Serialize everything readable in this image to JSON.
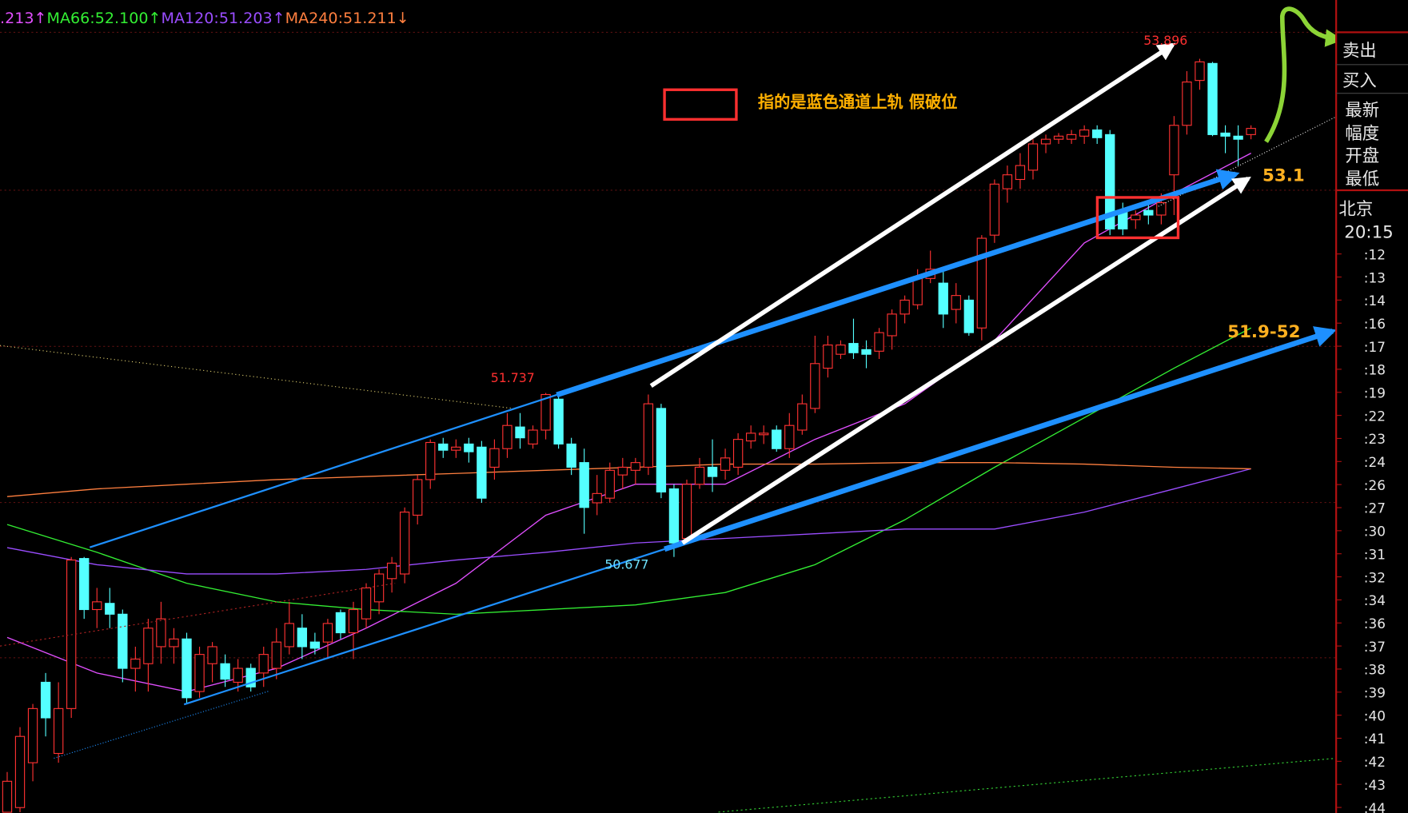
{
  "chart_data": {
    "type": "candlestick",
    "legend": [
      {
        "text": ".213↑",
        "color": "#e14fff"
      },
      {
        "text": "MA66:52.100↑",
        "color": "#33ee33"
      },
      {
        "text": "MA120:51.203↑",
        "color": "#9a4dff"
      },
      {
        "text": "MA240:51.211↓",
        "color": "#ff7f3f"
      }
    ],
    "ylim": [
      49.025,
      54.28
    ],
    "up_color": "#ff3232",
    "down_color": "#54ffff",
    "open": [
      49.03,
      49.06,
      49.35,
      49.87,
      49.41,
      49.7,
      50.67,
      50.34,
      50.38,
      50.31,
      49.96,
      49.99,
      50.1,
      50.1,
      50.15,
      49.81,
      49.99,
      49.99,
      49.87,
      49.96,
      49.93,
      49.96,
      50.1,
      50.22,
      50.13,
      50.13,
      50.32,
      50.19,
      50.28,
      50.39,
      50.54,
      50.57,
      50.95,
      51.18,
      51.41,
      51.37,
      51.41,
      51.39,
      51.26,
      51.38,
      51.52,
      51.41,
      51.5,
      51.7,
      51.41,
      51.29,
      51.03,
      51.06,
      51.21,
      51.24,
      51.26,
      51.64,
      51.12,
      50.8,
      51.15,
      51.26,
      51.24,
      51.26,
      51.43,
      51.47,
      51.5,
      51.38,
      51.5,
      51.64,
      51.9,
      51.99,
      52.06,
      52.02,
      52.01,
      52.11,
      52.25,
      52.31,
      52.48,
      52.45,
      52.28,
      52.34,
      52.16,
      52.76,
      53.06,
      53.12,
      53.18,
      53.35,
      53.38,
      53.38,
      53.4,
      53.44,
      53.41,
      52.92,
      52.86,
      52.92,
      52.89,
      53.15,
      53.47,
      53.76,
      53.87,
      53.42,
      53.4,
      53.41
    ],
    "close": [
      49.23,
      49.52,
      49.7,
      49.64,
      49.7,
      50.66,
      50.34,
      50.39,
      50.31,
      49.96,
      50.02,
      50.22,
      50.28,
      50.15,
      49.77,
      50.05,
      50.1,
      49.89,
      49.96,
      49.84,
      50.05,
      50.13,
      50.25,
      50.1,
      50.09,
      50.25,
      50.19,
      50.34,
      50.48,
      50.57,
      50.64,
      50.97,
      51.18,
      51.42,
      51.37,
      51.39,
      51.36,
      51.06,
      51.38,
      51.53,
      51.45,
      51.5,
      51.73,
      51.41,
      51.26,
      51.0,
      51.09,
      51.24,
      51.26,
      51.29,
      51.67,
      51.1,
      50.77,
      51.15,
      51.26,
      51.2,
      51.32,
      51.44,
      51.48,
      51.48,
      51.38,
      51.53,
      51.67,
      51.93,
      52.05,
      52.05,
      52.0,
      51.99,
      52.13,
      52.25,
      52.34,
      52.48,
      52.54,
      52.25,
      52.37,
      52.13,
      52.74,
      53.09,
      53.15,
      53.21,
      53.35,
      53.38,
      53.4,
      53.41,
      53.44,
      53.39,
      52.8,
      52.8,
      52.89,
      52.89,
      52.97,
      53.47,
      53.75,
      53.88,
      53.41,
      53.4,
      53.38,
      53.45
    ],
    "high": [
      49.29,
      49.58,
      49.73,
      49.93,
      49.87,
      50.68,
      50.68,
      50.48,
      50.48,
      50.34,
      50.1,
      50.28,
      50.39,
      50.22,
      50.19,
      50.1,
      50.13,
      50.05,
      50.02,
      49.99,
      50.1,
      50.22,
      50.39,
      50.31,
      50.19,
      50.28,
      50.34,
      50.39,
      50.51,
      50.6,
      50.68,
      51.0,
      51.21,
      51.44,
      51.45,
      51.44,
      51.45,
      51.43,
      51.44,
      51.61,
      51.61,
      51.53,
      51.74,
      51.73,
      51.45,
      51.38,
      51.21,
      51.29,
      51.32,
      51.32,
      51.73,
      51.67,
      51.15,
      51.18,
      51.32,
      51.44,
      51.38,
      51.48,
      51.53,
      51.53,
      51.53,
      51.61,
      51.73,
      52.11,
      52.11,
      52.08,
      52.22,
      52.08,
      52.16,
      52.28,
      52.37,
      52.54,
      52.66,
      52.54,
      52.45,
      52.37,
      52.76,
      53.12,
      53.21,
      53.29,
      53.38,
      53.41,
      53.42,
      53.44,
      53.47,
      53.47,
      53.44,
      52.97,
      52.92,
      52.97,
      53.03,
      53.53,
      53.82,
      53.9,
      53.88,
      53.47,
      53.47,
      53.47
    ],
    "low": [
      49.03,
      49.03,
      49.23,
      49.52,
      49.35,
      49.64,
      50.28,
      50.22,
      50.22,
      49.87,
      49.81,
      49.81,
      49.99,
      49.99,
      49.73,
      49.77,
      49.87,
      49.84,
      49.81,
      49.81,
      49.84,
      49.89,
      50.05,
      50.02,
      50.05,
      50.02,
      50.15,
      50.02,
      50.22,
      50.31,
      50.45,
      50.51,
      50.89,
      51.12,
      51.32,
      51.32,
      51.29,
      51.03,
      51.18,
      51.32,
      51.38,
      51.38,
      51.44,
      51.38,
      51.21,
      50.83,
      50.95,
      51.03,
      51.12,
      51.15,
      51.21,
      51.06,
      50.68,
      50.77,
      51.12,
      51.1,
      51.18,
      51.21,
      51.38,
      51.41,
      51.36,
      51.32,
      51.47,
      51.61,
      51.84,
      51.96,
      51.96,
      51.9,
      51.96,
      52.02,
      52.19,
      52.28,
      52.45,
      52.16,
      52.19,
      52.11,
      52.08,
      52.71,
      52.97,
      53.06,
      53.12,
      53.29,
      53.35,
      53.35,
      53.35,
      53.35,
      52.76,
      52.76,
      52.8,
      52.83,
      52.83,
      52.89,
      53.41,
      53.7,
      53.4,
      53.29,
      53.21,
      53.38
    ],
    "series": [
      {
        "color": "#e14fff",
        "x": [
          0,
          7,
          14,
          21,
          28,
          35,
          42,
          49,
          56,
          63,
          70,
          77,
          84,
          91,
          97
        ],
        "values": [
          50.16,
          49.93,
          49.81,
          49.96,
          50.22,
          50.51,
          50.95,
          51.15,
          51.15,
          51.44,
          51.67,
          52.08,
          52.71,
          53.03,
          53.29
        ]
      },
      {
        "color": "#33ee33",
        "x": [
          0,
          7,
          14,
          21,
          28,
          35,
          42,
          49,
          56,
          63,
          70,
          77,
          84,
          91,
          97
        ],
        "values": [
          50.89,
          50.71,
          50.51,
          50.39,
          50.34,
          50.31,
          50.34,
          50.37,
          50.45,
          50.63,
          50.92,
          51.26,
          51.58,
          51.9,
          52.16
        ]
      },
      {
        "color": "#9a4dff",
        "x": [
          0,
          7,
          14,
          21,
          28,
          35,
          42,
          49,
          56,
          63,
          70,
          77,
          84,
          91,
          97
        ],
        "values": [
          50.74,
          50.63,
          50.57,
          50.57,
          50.6,
          50.66,
          50.71,
          50.77,
          50.8,
          50.83,
          50.86,
          50.86,
          50.97,
          51.12,
          51.25
        ]
      },
      {
        "color": "#ff7f3f",
        "x": [
          0,
          7,
          14,
          21,
          28,
          35,
          42,
          49,
          56,
          63,
          70,
          77,
          84,
          91,
          97
        ],
        "values": [
          51.07,
          51.12,
          51.15,
          51.18,
          51.2,
          51.22,
          51.24,
          51.26,
          51.28,
          51.28,
          51.29,
          51.29,
          51.28,
          51.26,
          51.25
        ]
      }
    ],
    "annotations": [
      {
        "text": "53.896",
        "color": "#ff3030"
      },
      {
        "text": "51.737",
        "color": "#ff3030"
      },
      {
        "text": "50.677",
        "color": "#6fe3ff"
      },
      {
        "text": "指的是蓝色通道上轨 假破位",
        "color": "#ffb000"
      },
      {
        "text": "53.1",
        "color": "#ffb020"
      },
      {
        "text": "51.9-52",
        "color": "#ffb020"
      }
    ]
  },
  "side_panel": {
    "trade": [
      "卖出",
      "买入"
    ],
    "quote": [
      "最新",
      "幅度",
      "开盘",
      "最低"
    ],
    "city": "北京",
    "time": "20:15",
    "ticks": [
      ":12",
      ":13",
      ":14",
      ":16",
      ":17",
      ":18",
      ":19",
      ":22",
      ":23",
      ":24",
      ":26",
      ":27",
      ":30",
      ":31",
      ":32",
      ":34",
      ":36",
      ":37",
      ":38",
      ":39",
      ":40",
      ":41",
      ":42",
      ":43",
      ":44"
    ]
  }
}
